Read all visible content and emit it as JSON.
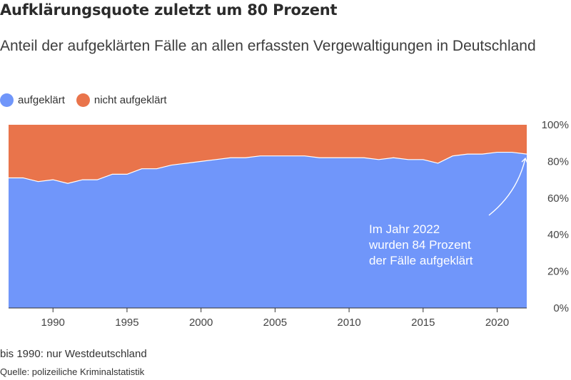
{
  "title": "Aufklärungsquote zuletzt um 80 Prozent",
  "subtitle": "Anteil der aufgeklärten Fälle an allen erfassten Vergewaltigungen in Deutschland",
  "legend": [
    {
      "label": "aufgeklärt",
      "color": "#7096fa"
    },
    {
      "label": "nicht aufgeklärt",
      "color": "#e9744b"
    }
  ],
  "chart_data": {
    "type": "area",
    "stacked": true,
    "x": [
      1987,
      1988,
      1989,
      1990,
      1991,
      1992,
      1993,
      1994,
      1995,
      1996,
      1997,
      1998,
      1999,
      2000,
      2001,
      2002,
      2003,
      2004,
      2005,
      2006,
      2007,
      2008,
      2009,
      2010,
      2011,
      2012,
      2013,
      2014,
      2015,
      2016,
      2017,
      2018,
      2019,
      2020,
      2021,
      2022
    ],
    "series": [
      {
        "name": "aufgeklärt",
        "color": "#7096fa",
        "values": [
          71,
          71,
          69,
          70,
          68,
          70,
          70,
          73,
          73,
          76,
          76,
          78,
          79,
          80,
          81,
          82,
          82,
          83,
          83,
          83,
          83,
          82,
          82,
          82,
          82,
          81,
          82,
          81,
          81,
          79,
          83,
          84,
          84,
          85,
          85,
          84
        ]
      },
      {
        "name": "nicht aufgeklärt",
        "color": "#e9744b",
        "values": [
          29,
          29,
          31,
          30,
          32,
          30,
          30,
          27,
          27,
          24,
          24,
          22,
          21,
          20,
          19,
          18,
          18,
          17,
          17,
          17,
          17,
          18,
          18,
          18,
          18,
          19,
          18,
          19,
          19,
          21,
          17,
          16,
          16,
          15,
          15,
          16
        ]
      }
    ],
    "x_ticks": [
      1990,
      1995,
      2000,
      2005,
      2010,
      2015,
      2020
    ],
    "y_ticks": [
      0,
      20,
      40,
      60,
      80,
      100
    ],
    "y_tick_labels": [
      "0%",
      "20%",
      "40%",
      "60%",
      "80%",
      "100%"
    ],
    "ylim": [
      0,
      100
    ],
    "annotation": {
      "lines": [
        "Im Jahr 2022",
        "wurden 84 Prozent",
        "der Fälle aufgeklärt"
      ],
      "year": 2022,
      "value": 84
    },
    "legend_position": "top-left"
  },
  "footer": {
    "note": "bis 1990: nur Westdeutschland",
    "source": "Quelle: polizeiliche Kriminalstatistik"
  }
}
